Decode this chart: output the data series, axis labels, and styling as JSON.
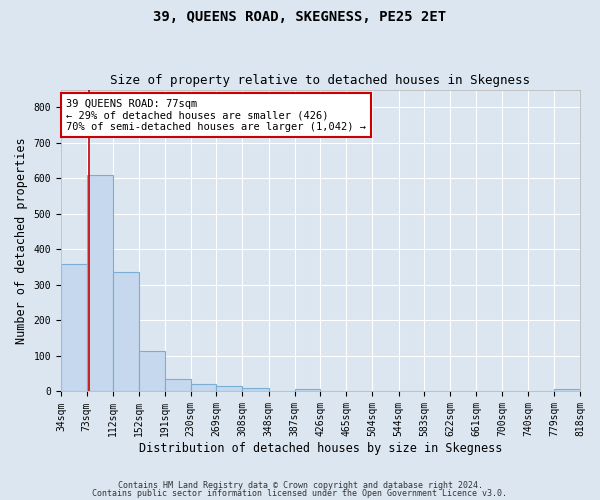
{
  "title": "39, QUEENS ROAD, SKEGNESS, PE25 2ET",
  "subtitle": "Size of property relative to detached houses in Skegness",
  "xlabel": "Distribution of detached houses by size in Skegness",
  "ylabel": "Number of detached properties",
  "footnote1": "Contains HM Land Registry data © Crown copyright and database right 2024.",
  "footnote2": "Contains public sector information licensed under the Open Government Licence v3.0.",
  "bin_edges": [
    34,
    73,
    112,
    152,
    191,
    230,
    269,
    308,
    348,
    387,
    426,
    465,
    504,
    544,
    583,
    622,
    661,
    700,
    740,
    779,
    818
  ],
  "bar_heights": [
    358,
    610,
    335,
    115,
    35,
    20,
    15,
    10,
    0,
    8,
    0,
    0,
    0,
    0,
    0,
    0,
    0,
    0,
    0,
    8
  ],
  "bar_color": "#c5d8ed",
  "bar_edge_color": "#7aaed4",
  "property_size": 77,
  "property_line_color": "#cc0000",
  "ann_line1": "39 QUEENS ROAD: 77sqm",
  "ann_line2": "← 29% of detached houses are smaller (426)",
  "ann_line3": "70% of semi-detached houses are larger (1,042) →",
  "annotation_box_facecolor": "#ffffff",
  "annotation_box_edgecolor": "#cc0000",
  "ylim": [
    0,
    850
  ],
  "yticks": [
    0,
    100,
    200,
    300,
    400,
    500,
    600,
    700,
    800
  ],
  "bg_color": "#dce6f1",
  "plot_bg_color": "#dce6f1",
  "grid_color": "#ffffff",
  "title_fontsize": 10,
  "subtitle_fontsize": 9,
  "axis_label_fontsize": 8.5,
  "tick_fontsize": 7,
  "annotation_fontsize": 7.5,
  "footnote_fontsize": 6
}
